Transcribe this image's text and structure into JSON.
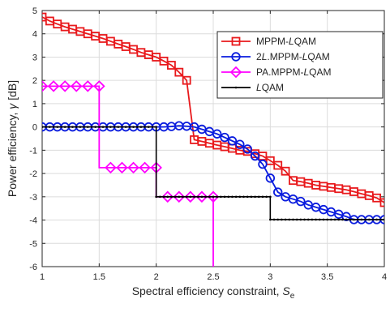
{
  "chart_data": {
    "type": "line",
    "xlabel": {
      "main": "Spectral efficiency constraint, ",
      "sym": "S",
      "sub": "e"
    },
    "ylabel": {
      "main": "Power efficiency, ",
      "sym": "γ",
      "unit": " [dB]"
    },
    "xlim": [
      1,
      4
    ],
    "ylim": [
      -6,
      5
    ],
    "x_ticks": [
      1,
      1.5,
      2,
      2.5,
      3,
      3.5,
      4
    ],
    "x_tick_labels": [
      "1",
      "1.5",
      "2",
      "2.5",
      "3",
      "3.5",
      "4"
    ],
    "y_ticks": [
      -6,
      -5,
      -4,
      -3,
      -2,
      -1,
      0,
      1,
      2,
      3,
      4,
      5
    ],
    "y_tick_labels": [
      "-6",
      "-5",
      "-4",
      "-3",
      "-2",
      "-1",
      "0",
      "1",
      "2",
      "3",
      "4",
      "5"
    ],
    "grid": true,
    "legend_position": "top-right",
    "series": [
      {
        "name": [
          "MPPM-",
          "L",
          "QAM"
        ],
        "color": "#e8191c",
        "marker": "square",
        "x": [
          1,
          1.0667,
          1.1333,
          1.2,
          1.2667,
          1.3333,
          1.4,
          1.4667,
          1.5333,
          1.6,
          1.6667,
          1.7333,
          1.8,
          1.8667,
          1.9333,
          2,
          2.0667,
          2.1333,
          2.2,
          2.2667,
          2.3333,
          2.4,
          2.4667,
          2.5333,
          2.6,
          2.6667,
          2.7333,
          2.8,
          2.8667,
          2.9333,
          3,
          3.0667,
          3.1333,
          3.2,
          3.2667,
          3.3333,
          3.4,
          3.4667,
          3.5333,
          3.6,
          3.6667,
          3.7333,
          3.8,
          3.8667,
          3.9333,
          4
        ],
        "y": [
          4.72,
          4.55,
          4.42,
          4.3,
          4.2,
          4.1,
          4.0,
          3.9,
          3.8,
          3.68,
          3.56,
          3.45,
          3.33,
          3.2,
          3.1,
          3.0,
          2.83,
          2.65,
          2.35,
          2.0,
          -0.55,
          -0.62,
          -0.7,
          -0.78,
          -0.85,
          -0.92,
          -1.0,
          -1.05,
          -1.15,
          -1.25,
          -1.45,
          -1.65,
          -1.9,
          -2.3,
          -2.35,
          -2.42,
          -2.5,
          -2.55,
          -2.6,
          -2.65,
          -2.7,
          -2.78,
          -2.87,
          -2.95,
          -3.05,
          -3.25
        ]
      },
      {
        "name": [
          "2",
          "L",
          ".MPPM-",
          "L",
          "QAM"
        ],
        "color": "#0a1cde",
        "marker": "circle",
        "x": [
          1,
          1.0667,
          1.1333,
          1.2,
          1.2667,
          1.3333,
          1.4,
          1.4667,
          1.5333,
          1.6,
          1.6667,
          1.7333,
          1.8,
          1.8667,
          1.9333,
          2,
          2.0667,
          2.1333,
          2.2,
          2.2667,
          2.3333,
          2.4,
          2.4667,
          2.5333,
          2.6,
          2.6667,
          2.7333,
          2.8,
          2.8667,
          2.9333,
          3,
          3.0667,
          3.1333,
          3.2,
          3.2667,
          3.3333,
          3.4,
          3.4667,
          3.5333,
          3.6,
          3.6667,
          3.7333,
          3.8,
          3.8667,
          3.9333,
          4
        ],
        "y": [
          0,
          0,
          0,
          0,
          0,
          0,
          0,
          0,
          0,
          0,
          0,
          0,
          0,
          0,
          0,
          0,
          0,
          0.02,
          0.05,
          0.03,
          0.0,
          -0.1,
          -0.2,
          -0.3,
          -0.45,
          -0.6,
          -0.75,
          -0.95,
          -1.25,
          -1.6,
          -2.2,
          -2.8,
          -3.0,
          -3.1,
          -3.2,
          -3.35,
          -3.45,
          -3.55,
          -3.65,
          -3.75,
          -3.85,
          -3.98,
          -3.98,
          -3.98,
          -3.98,
          -3.98
        ]
      },
      {
        "name": [
          "PA.MPPM-",
          "L",
          "QAM"
        ],
        "color": "#ff00ff",
        "marker": "diamond",
        "x": [
          1,
          1.1,
          1.2,
          1.3,
          1.4,
          1.5,
          1.5,
          1.6,
          1.7,
          1.8,
          1.9,
          2,
          2,
          2.1,
          2.2,
          2.3,
          2.4,
          2.5,
          2.5
        ],
        "y": [
          1.75,
          1.75,
          1.75,
          1.75,
          1.75,
          1.75,
          -1.75,
          -1.75,
          -1.75,
          -1.75,
          -1.75,
          -1.75,
          -3.0,
          -3.0,
          -3.0,
          -3.0,
          -3.0,
          -3.0,
          -6.0
        ],
        "marker_mask": [
          1,
          1,
          1,
          1,
          1,
          1,
          0,
          1,
          1,
          1,
          1,
          1,
          0,
          1,
          1,
          1,
          1,
          1,
          0
        ]
      },
      {
        "name": [
          "",
          "L",
          "QAM"
        ],
        "color": "#000000",
        "marker": "dot",
        "x": [
          1,
          2,
          2,
          3,
          3,
          4
        ],
        "y": [
          0,
          0,
          -3.0,
          -3.0,
          -3.98,
          -3.98
        ]
      }
    ]
  }
}
